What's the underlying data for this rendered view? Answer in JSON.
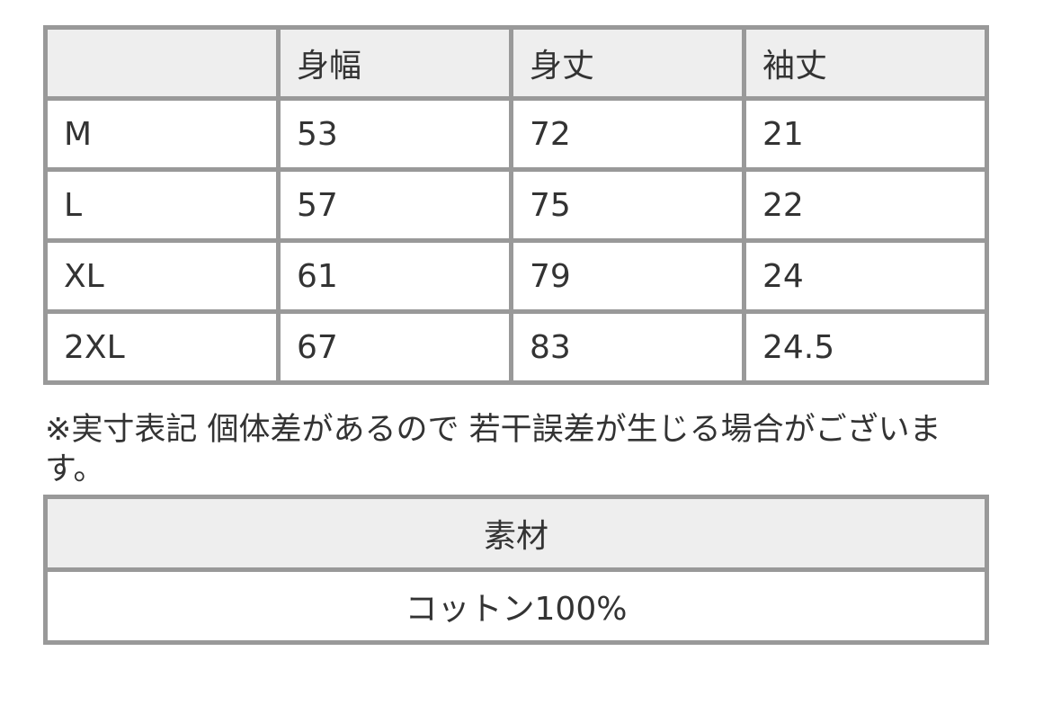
{
  "size_table": {
    "headers": [
      "",
      "身幅",
      "身丈",
      "袖丈"
    ],
    "rows": [
      [
        "M",
        "53",
        "72",
        "21"
      ],
      [
        "L",
        "57",
        "75",
        "22"
      ],
      [
        "XL",
        "61",
        "79",
        "24"
      ],
      [
        "2XL",
        "67",
        "83",
        "24.5"
      ]
    ]
  },
  "note": "※実寸表記 個体差があるので 若干誤差が生じる場合がございます。",
  "material_table": {
    "header": "素材",
    "value": "コットン100%"
  },
  "colors": {
    "border": "#999999",
    "header_bg": "#eeeeee",
    "text": "#333333"
  }
}
